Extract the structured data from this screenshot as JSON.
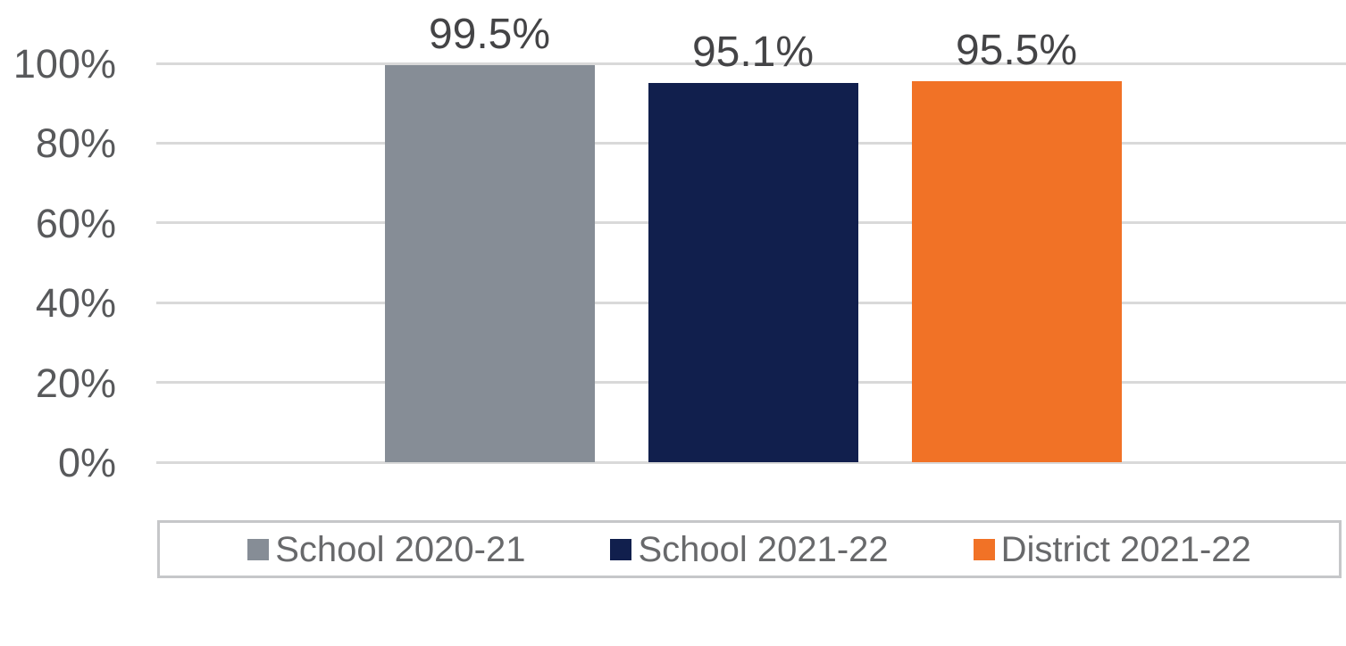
{
  "chart_data": {
    "type": "bar",
    "series": [
      {
        "name": "School 2020-21",
        "value": 99.5,
        "data_label": "99.5%",
        "color": "#868D96"
      },
      {
        "name": "School 2021-22",
        "value": 95.1,
        "data_label": "95.1%",
        "color": "#111F4D"
      },
      {
        "name": "District 2021-22",
        "value": 95.5,
        "data_label": "95.5%",
        "color": "#F17226"
      }
    ],
    "ylim": [
      0,
      100
    ],
    "yticks": [
      {
        "value": 100,
        "label": "100%"
      },
      {
        "value": 80,
        "label": "80%"
      },
      {
        "value": 60,
        "label": "60%"
      },
      {
        "value": 40,
        "label": "40%"
      },
      {
        "value": 20,
        "label": "20%"
      },
      {
        "value": 0,
        "label": "0%"
      }
    ],
    "grid": true,
    "legend_position": "bottom"
  },
  "style": {
    "background": "#FFFFFF",
    "grid_color": "#D9D9D9",
    "tick_label_color": "#58595B",
    "value_label_color": "#444446",
    "legend_text_color": "#68696B",
    "legend_border_color": "#C6C7C9"
  }
}
